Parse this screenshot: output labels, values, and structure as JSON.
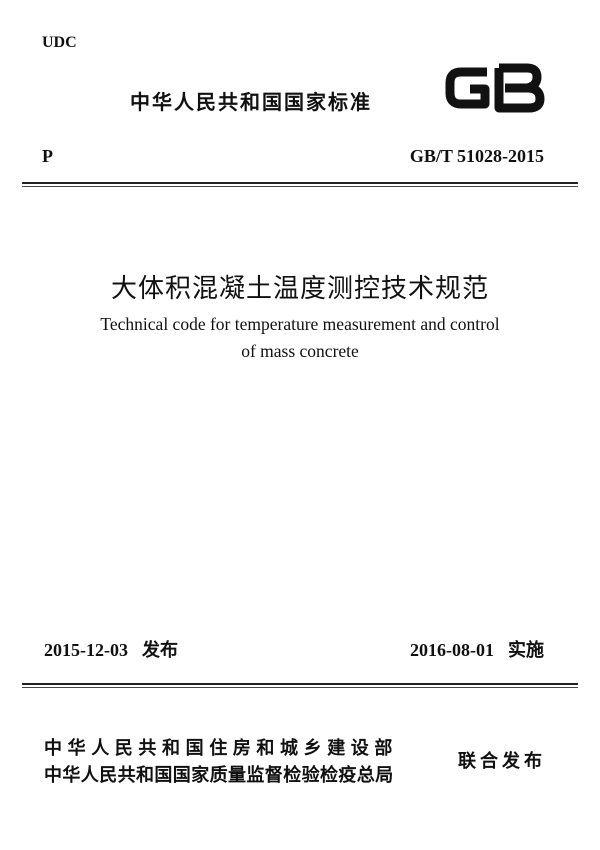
{
  "header": {
    "udc_label": "UDC",
    "country_standard": "中华人民共和国国家标准",
    "logo": "GB",
    "classification": "P",
    "standard_code": "GB/T 51028-2015"
  },
  "title": {
    "chinese": "大体积混凝土温度测控技术规范",
    "english_line1": "Technical code for temperature measurement and control",
    "english_line2": "of mass concrete"
  },
  "dates": {
    "publish_date": "2015-12-03",
    "publish_label": "发布",
    "implement_date": "2016-08-01",
    "implement_label": "实施"
  },
  "issuers": {
    "issuer1": "中华人民共和国住房和城乡建设部",
    "issuer2": "中华人民共和国国家质量监督检验检疫总局",
    "joint_label": "联合发布"
  }
}
